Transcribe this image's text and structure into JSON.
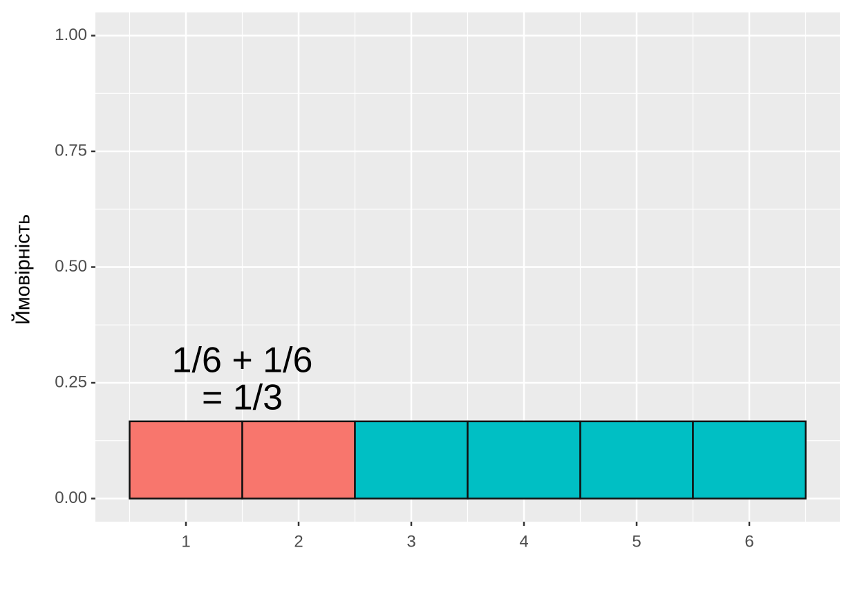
{
  "chart_data": {
    "type": "bar",
    "y_label": "Ймовірність",
    "annotation": [
      "1/6  + 1/6",
      "= 1/3"
    ],
    "categories": [
      "1",
      "2",
      "3",
      "4",
      "5",
      "6"
    ],
    "values": [
      0.1667,
      0.1667,
      0.1667,
      0.1667,
      0.1667,
      0.1667
    ],
    "colors": [
      "#F8766D",
      "#F8766D",
      "#00BFC4",
      "#00BFC4",
      "#00BFC4",
      "#00BFC4"
    ],
    "ylim": [
      -0.05,
      1.05
    ],
    "yticks": [
      {
        "value": 0,
        "label": "0.00"
      },
      {
        "value": 0.25,
        "label": "0.25"
      },
      {
        "value": 0.5,
        "label": "0.50"
      },
      {
        "value": 0.75,
        "label": "0.75"
      },
      {
        "value": 1,
        "label": "1.00"
      }
    ],
    "grid": true
  }
}
